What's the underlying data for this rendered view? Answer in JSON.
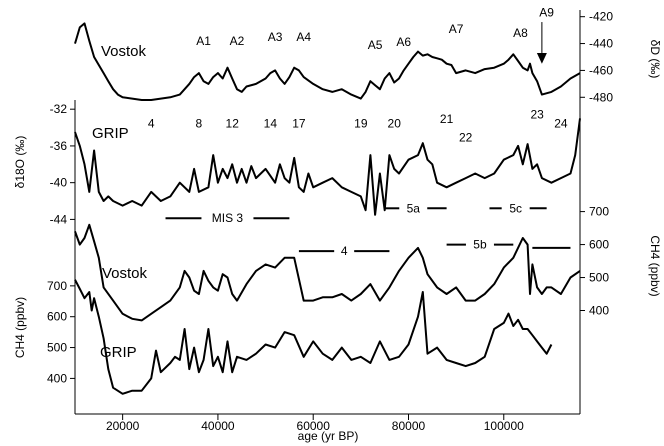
{
  "chart_data": {
    "type": "line",
    "x_axis": {
      "label": "age (yr BP)",
      "range": [
        10000,
        116000
      ],
      "ticks": [
        20000,
        40000,
        60000,
        80000,
        100000
      ],
      "tick_labels": [
        "20000",
        "40000",
        "60000",
        "80000",
        "100000"
      ]
    },
    "y_axes": [
      {
        "id": "dD",
        "side": "right",
        "label": "δD (‰)",
        "range": [
          -485,
          -418
        ],
        "ticks": [
          -420,
          -440,
          -460,
          -480
        ],
        "tick_labels": [
          "-420",
          "-440",
          "-460",
          "-480"
        ]
      },
      {
        "id": "d18O",
        "side": "left",
        "label": "δ18O (‰)",
        "range": [
          -44.5,
          -31
        ],
        "ticks": [
          -32,
          -36,
          -40,
          -44
        ],
        "tick_labels": [
          "-32",
          "-36",
          "-40",
          "-44"
        ]
      },
      {
        "id": "ch4_vostok",
        "side": "right",
        "label": "CH4 (ppbv)",
        "range": [
          350,
          720
        ],
        "ticks": [
          400,
          500,
          600,
          700
        ],
        "tick_labels": [
          "400",
          "500",
          "600",
          "700"
        ]
      },
      {
        "id": "ch4_grip",
        "side": "left",
        "label": "CH4 (ppbv)",
        "range": [
          330,
          800
        ],
        "ticks": [
          400,
          500,
          600,
          700
        ],
        "tick_labels": [
          "400",
          "500",
          "600",
          "700"
        ]
      }
    ],
    "series": [
      {
        "name": "Vostok",
        "axis": "dD",
        "x": [
          10000,
          11000,
          12000,
          13000,
          14000,
          15000,
          16000,
          17000,
          18000,
          19000,
          20000,
          22000,
          24000,
          26000,
          28000,
          30000,
          32000,
          33000,
          34000,
          35000,
          36000,
          37000,
          38000,
          39000,
          40000,
          41000,
          42000,
          43000,
          44000,
          45000,
          46000,
          48000,
          50000,
          51000,
          52000,
          53000,
          54000,
          55000,
          56000,
          57000,
          58000,
          60000,
          62000,
          64000,
          66000,
          68000,
          70000,
          71000,
          72000,
          73000,
          74000,
          75000,
          76000,
          77000,
          78000,
          79000,
          80000,
          81000,
          82000,
          83000,
          84000,
          85000,
          86000,
          87000,
          88000,
          89000,
          90000,
          92000,
          94000,
          96000,
          98000,
          100000,
          101000,
          102000,
          103000,
          104000,
          105000,
          105500,
          106000,
          107000,
          108000,
          110000,
          112000,
          114000,
          116000
        ],
        "y": [
          -440,
          -428,
          -425,
          -438,
          -450,
          -456,
          -462,
          -468,
          -474,
          -478,
          -480,
          -481,
          -482,
          -482,
          -481,
          -480,
          -478,
          -474,
          -470,
          -465,
          -462,
          -468,
          -470,
          -465,
          -462,
          -466,
          -458,
          -466,
          -474,
          -476,
          -472,
          -470,
          -466,
          -462,
          -460,
          -466,
          -470,
          -465,
          -458,
          -460,
          -465,
          -470,
          -474,
          -476,
          -474,
          -478,
          -481,
          -476,
          -468,
          -471,
          -474,
          -466,
          -462,
          -469,
          -466,
          -460,
          -455,
          -450,
          -446,
          -449,
          -448,
          -450,
          -451,
          -452,
          -455,
          -456,
          -462,
          -460,
          -462,
          -459,
          -458,
          -455,
          -452,
          -448,
          -453,
          -458,
          -460,
          -455,
          -462,
          -468,
          -478,
          -476,
          -472,
          -466,
          -462
        ]
      },
      {
        "name": "GRIP",
        "axis": "d18O",
        "x": [
          10000,
          11000,
          12000,
          13000,
          14000,
          15000,
          16000,
          17000,
          18000,
          20000,
          22000,
          24000,
          26000,
          28000,
          30000,
          32000,
          34000,
          35000,
          36000,
          38000,
          39000,
          40000,
          41000,
          42000,
          43000,
          44000,
          45000,
          46000,
          47000,
          48000,
          50000,
          52000,
          53000,
          54000,
          55000,
          56000,
          57000,
          58000,
          59000,
          60000,
          62000,
          64000,
          66000,
          68000,
          70000,
          71000,
          72000,
          73000,
          74000,
          75000,
          76000,
          77000,
          78000,
          80000,
          82000,
          83000,
          84000,
          85000,
          86000,
          88000,
          90000,
          92000,
          94000,
          96000,
          98000,
          100000,
          102000,
          103000,
          104000,
          105000,
          106000,
          107000,
          108000,
          110000,
          112000,
          114000,
          115000,
          116000
        ],
        "y": [
          -34.5,
          -36,
          -38,
          -41,
          -36.5,
          -41,
          -42,
          -41.5,
          -42,
          -42.5,
          -42,
          -42.5,
          -41,
          -42,
          -41.5,
          -40,
          -41,
          -38.5,
          -41,
          -40.5,
          -37,
          -40,
          -38.5,
          -39.5,
          -38,
          -40,
          -38.5,
          -40,
          -38.2,
          -39.5,
          -38.5,
          -40,
          -38,
          -39.5,
          -40,
          -37.3,
          -40.5,
          -41,
          -39,
          -40.5,
          -40,
          -39.5,
          -40.5,
          -41,
          -41.5,
          -43,
          -37,
          -43.5,
          -39,
          -43,
          -37,
          -38.5,
          -39,
          -37.5,
          -37,
          -35.7,
          -37.5,
          -38,
          -40,
          -40.5,
          -40,
          -39.5,
          -39,
          -39.5,
          -39,
          -37.5,
          -37,
          -36,
          -38,
          -35.8,
          -38.5,
          -38,
          -39.5,
          -40,
          -39.5,
          -39,
          -37,
          -33
        ]
      },
      {
        "name": "Vostok",
        "axis": "ch4_vostok",
        "x": [
          10000,
          11000,
          12000,
          13000,
          14000,
          15000,
          16000,
          18000,
          20000,
          22000,
          24000,
          26000,
          28000,
          30000,
          32000,
          33000,
          34000,
          35000,
          36000,
          37000,
          38000,
          39000,
          40000,
          41000,
          42000,
          43000,
          44000,
          46000,
          48000,
          50000,
          52000,
          54000,
          56000,
          58000,
          60000,
          62000,
          64000,
          66000,
          68000,
          70000,
          72000,
          74000,
          76000,
          78000,
          80000,
          82000,
          83000,
          84000,
          86000,
          88000,
          90000,
          92000,
          94000,
          96000,
          98000,
          100000,
          102000,
          104000,
          105000,
          105500,
          106000,
          107000,
          108000,
          109000,
          110000,
          112000,
          114000,
          116000
        ],
        "y": [
          640,
          600,
          620,
          660,
          610,
          560,
          470,
          430,
          390,
          375,
          370,
          390,
          410,
          430,
          470,
          520,
          500,
          460,
          450,
          520,
          490,
          470,
          460,
          510,
          500,
          450,
          430,
          480,
          520,
          540,
          530,
          560,
          560,
          430,
          430,
          440,
          440,
          450,
          430,
          450,
          480,
          430,
          470,
          520,
          560,
          590,
          560,
          510,
          470,
          450,
          470,
          430,
          430,
          450,
          480,
          530,
          560,
          620,
          600,
          450,
          540,
          470,
          450,
          470,
          470,
          450,
          500,
          520
        ]
      },
      {
        "name": "GRIP",
        "axis": "ch4_grip",
        "x": [
          10000,
          11000,
          12000,
          13000,
          13500,
          14000,
          15000,
          16000,
          17000,
          18000,
          20000,
          22000,
          24000,
          26000,
          27000,
          28000,
          30000,
          31000,
          32000,
          33000,
          34000,
          35000,
          36000,
          37000,
          38000,
          39000,
          40000,
          41000,
          42000,
          43000,
          44000,
          46000,
          48000,
          50000,
          52000,
          54000,
          56000,
          58000,
          60000,
          62000,
          64000,
          66000,
          68000,
          70000,
          72000,
          74000,
          76000,
          78000,
          80000,
          82000,
          83000,
          84000,
          86000,
          88000,
          90000,
          92000,
          94000,
          96000,
          98000,
          100000,
          101000,
          102000,
          103000,
          104000,
          105000,
          106000,
          107000,
          108000,
          109000,
          110000
        ],
        "y": [
          720,
          690,
          660,
          680,
          620,
          660,
          600,
          530,
          430,
          370,
          350,
          360,
          360,
          400,
          490,
          420,
          450,
          470,
          460,
          560,
          430,
          500,
          420,
          460,
          560,
          440,
          470,
          420,
          520,
          420,
          470,
          460,
          480,
          510,
          500,
          550,
          540,
          470,
          520,
          480,
          460,
          500,
          460,
          470,
          450,
          520,
          460,
          470,
          510,
          600,
          680,
          480,
          500,
          460,
          450,
          440,
          450,
          470,
          560,
          580,
          610,
          570,
          590,
          560,
          560,
          540,
          520,
          500,
          480,
          510
        ]
      }
    ],
    "labels": {
      "vostok_dd": "Vostok",
      "grip_d18o": "GRIP",
      "vostok_ch4": "Vostok",
      "grip_ch4": "GRIP"
    },
    "event_labels": {
      "vostok_dd": [
        {
          "text": "A1",
          "x": 37000,
          "y": -441
        },
        {
          "text": "A2",
          "x": 44000,
          "y": -441
        },
        {
          "text": "A3",
          "x": 52000,
          "y": -438
        },
        {
          "text": "A4",
          "x": 58000,
          "y": -438
        },
        {
          "text": "A5",
          "x": 73000,
          "y": -444
        },
        {
          "text": "A6",
          "x": 79000,
          "y": -442
        },
        {
          "text": "A7",
          "x": 90000,
          "y": -432
        },
        {
          "text": "A8",
          "x": 103500,
          "y": -435
        },
        {
          "text": "A9",
          "x": 109000,
          "y": -420
        }
      ],
      "grip_d18o": [
        {
          "text": "4",
          "x": 26000,
          "y": -34
        },
        {
          "text": "8",
          "x": 36000,
          "y": -34
        },
        {
          "text": "12",
          "x": 43000,
          "y": -34
        },
        {
          "text": "14",
          "x": 51000,
          "y": -34
        },
        {
          "text": "17",
          "x": 57000,
          "y": -34
        },
        {
          "text": "19",
          "x": 70000,
          "y": -34
        },
        {
          "text": "20",
          "x": 77000,
          "y": -34
        },
        {
          "text": "21",
          "x": 88000,
          "y": -33.5
        },
        {
          "text": "22",
          "x": 92000,
          "y": -35.5
        },
        {
          "text": "23",
          "x": 107000,
          "y": -33
        },
        {
          "text": "24",
          "x": 112000,
          "y": -34
        }
      ]
    },
    "annotation_arrow": {
      "label": "A9",
      "x": 108000
    },
    "mis_stages": [
      {
        "label": "MIS 3",
        "x_start": 29000,
        "x_end": 55000,
        "ch4": 680,
        "label_x": 42000
      },
      {
        "label": "4",
        "x_start": 57000,
        "x_end": 76000,
        "ch4": 580,
        "label_x": 66500
      },
      {
        "label": "5a",
        "x_start": 75000,
        "x_end": 88000,
        "ch4": 710,
        "label_x": 81000
      },
      {
        "label": "5b",
        "x_start": 88000,
        "x_end": 102000,
        "ch4": 600,
        "label_x": 95000
      },
      {
        "label": "5c",
        "x_start": 97000,
        "x_end": 109000,
        "ch4": 710,
        "label_x": 102500
      },
      {
        "label": "",
        "x_start": 106000,
        "x_end": 114000,
        "ch4": 590,
        "label_x": 110000
      }
    ]
  }
}
